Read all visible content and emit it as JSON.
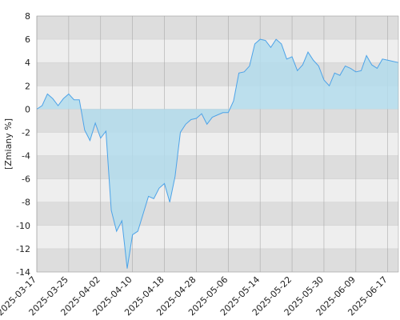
{
  "chart_data": {
    "type": "area",
    "y_label": "[Zmiany %]",
    "categories": [
      "2025-03-17",
      null,
      null,
      null,
      null,
      null,
      "2025-03-25",
      null,
      null,
      null,
      null,
      null,
      "2025-04-02",
      null,
      null,
      null,
      null,
      null,
      "2025-04-10",
      null,
      null,
      null,
      null,
      null,
      "2025-04-18",
      null,
      null,
      null,
      null,
      null,
      "2025-04-28",
      null,
      null,
      null,
      null,
      null,
      "2025-05-06",
      null,
      null,
      null,
      null,
      null,
      "2025-05-14",
      null,
      null,
      null,
      null,
      null,
      "2025-05-22",
      null,
      null,
      null,
      null,
      null,
      "2025-05-30",
      null,
      null,
      null,
      null,
      null,
      "2025-06-09",
      null,
      null,
      null,
      null,
      null,
      "2025-06-17",
      null,
      null
    ],
    "values": [
      0,
      0.3,
      1.3,
      0.9,
      0.3,
      0.9,
      1.3,
      0.8,
      0.8,
      -1.8,
      -2.7,
      -1.2,
      -2.5,
      -1.9,
      -8.7,
      -10.5,
      -9.6,
      -13.7,
      -10.8,
      -10.5,
      -9.0,
      -7.5,
      -7.7,
      -6.8,
      -6.4,
      -8.0,
      -5.8,
      -2.0,
      -1.3,
      -0.9,
      -0.8,
      -0.4,
      -1.3,
      -0.7,
      -0.5,
      -0.3,
      -0.3,
      0.7,
      3.1,
      3.2,
      3.7,
      5.6,
      6.0,
      5.9,
      5.3,
      6.0,
      5.6,
      4.3,
      4.5,
      3.3,
      3.8,
      4.9,
      4.2,
      3.7,
      2.5,
      2.0,
      3.1,
      2.9,
      3.7,
      3.5,
      3.2,
      3.3,
      4.6,
      3.8,
      3.5,
      4.3,
      4.2,
      4.1,
      4.0
    ],
    "color": "#4da3e8",
    "area_color": "#b3dcec",
    "ylim": [
      -14,
      8
    ],
    "yticks": [
      -14,
      -12,
      -10,
      -8,
      -6,
      -4,
      -2,
      0,
      2,
      4,
      6,
      8
    ],
    "band_colors": [
      "#dddddd",
      "#eeeeee"
    ],
    "grid": true
  }
}
